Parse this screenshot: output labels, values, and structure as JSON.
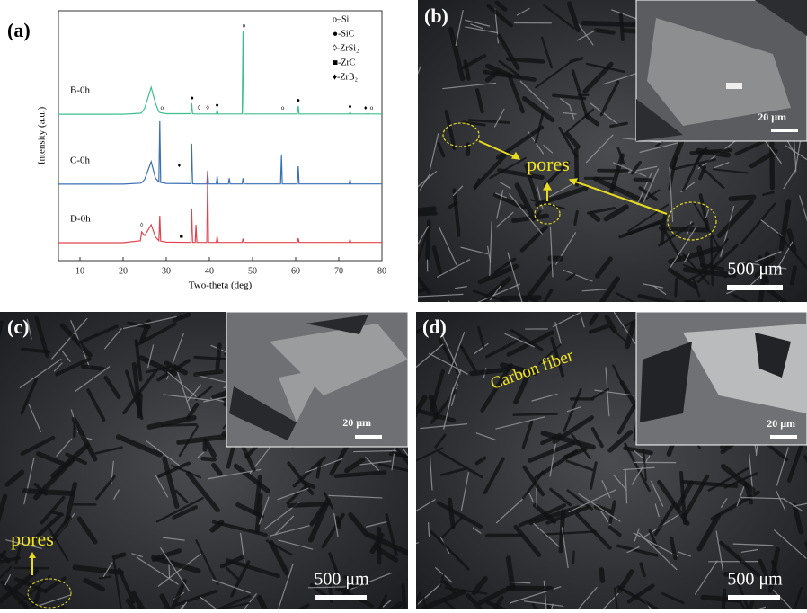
{
  "chart_data": {
    "type": "line",
    "x_label": "Two-theta (deg)",
    "y_label": "Intensity (a.u.)",
    "xlim": [
      5,
      80
    ],
    "xticks": [
      10,
      20,
      30,
      40,
      50,
      60,
      70,
      80
    ],
    "ylim": [
      0,
      100
    ],
    "x": [
      5,
      20,
      24,
      24.3,
      25,
      26.5,
      27.5,
      28.3,
      28.5,
      28.7,
      30,
      35.7,
      35.9,
      36.1,
      36.7,
      36.9,
      37.1,
      39.4,
      39.6,
      39.8,
      41.6,
      41.8,
      42,
      44.4,
      44.6,
      44.8,
      47.6,
      47.8,
      48,
      56.5,
      56.7,
      56.9,
      60.4,
      60.6,
      60.8,
      72.4,
      72.6,
      72.8,
      76.6,
      76.8,
      77,
      80
    ],
    "series": [
      {
        "name": "B-0h",
        "color": "#3dbf8f",
        "values": [
          58.6,
          58.6,
          59,
          59.2,
          61,
          69.4,
          63,
          59.5,
          59.3,
          59.2,
          58.8,
          58.8,
          63,
          58.8,
          58.7,
          58.7,
          58.7,
          58.7,
          58.7,
          58.7,
          58.7,
          60.4,
          58.7,
          58.7,
          58.7,
          58.7,
          58.7,
          91.7,
          58.7,
          58.7,
          58.7,
          58.7,
          58.7,
          61.9,
          58.7,
          58.7,
          59.4,
          58.7,
          58.7,
          59,
          58.7,
          58.7
        ]
      },
      {
        "name": "C-0h",
        "color": "#3a6fb5",
        "values": [
          30.6,
          30.6,
          31,
          31.2,
          32.5,
          39.6,
          33,
          31.5,
          55.8,
          31.3,
          30.9,
          30.8,
          46.8,
          30.8,
          30.7,
          30.7,
          30.7,
          30.7,
          36,
          30.7,
          30.7,
          33.8,
          30.7,
          30.7,
          33,
          30.7,
          30.7,
          33,
          30.7,
          30.7,
          42,
          30.7,
          30.7,
          37.8,
          30.7,
          30.7,
          32.5,
          30.7,
          30.7,
          30.7,
          30.7,
          30.7
        ]
      },
      {
        "name": "D-0h",
        "color": "#e0454f",
        "values": [
          7.2,
          7.2,
          8,
          11.5,
          10,
          14.4,
          9.5,
          8,
          18,
          7.8,
          7.4,
          7.3,
          20.9,
          7.3,
          7.3,
          14.4,
          7.3,
          7.3,
          36,
          7.3,
          7.3,
          9.8,
          7.3,
          7.3,
          7.3,
          7.3,
          7.3,
          8.8,
          7.3,
          7.3,
          7.3,
          7.3,
          7.3,
          9,
          7.3,
          7.3,
          8.5,
          7.3,
          7.3,
          7.3,
          7.3,
          7.3
        ]
      }
    ],
    "phase_legend": [
      "o–Si",
      "●-SiC",
      "◊-ZrSi₂",
      "■-ZrC",
      "♦-ZrB₂"
    ],
    "annotations": [
      {
        "text": "o",
        "x": 48,
        "y": 94
      },
      {
        "text": "●",
        "x": 36,
        "y": 65
      },
      {
        "text": "o",
        "x": 29,
        "y": 61
      },
      {
        "text": "◊",
        "x": 37.6,
        "y": 61
      },
      {
        "text": "◊",
        "x": 39.6,
        "y": 61
      },
      {
        "text": "●",
        "x": 41.8,
        "y": 62
      },
      {
        "text": "o",
        "x": 57,
        "y": 61
      },
      {
        "text": "●",
        "x": 60.6,
        "y": 64
      },
      {
        "text": "●",
        "x": 72.6,
        "y": 61.5
      },
      {
        "text": "♦",
        "x": 76.2,
        "y": 61
      },
      {
        "text": "o",
        "x": 77.6,
        "y": 61
      },
      {
        "text": "♦",
        "x": 33,
        "y": 38
      },
      {
        "text": "◊",
        "x": 24.3,
        "y": 14
      },
      {
        "text": "■",
        "x": 33.5,
        "y": 9.5
      }
    ]
  },
  "panels": {
    "a": "(a)",
    "b": "(b)",
    "c": "(c)",
    "d": "(d)",
    "b_pores": "pores",
    "c_pores": "pores",
    "d_fiber": "Carbon fiber",
    "scale_large": "500 μm",
    "scale_small": "20 μm"
  }
}
